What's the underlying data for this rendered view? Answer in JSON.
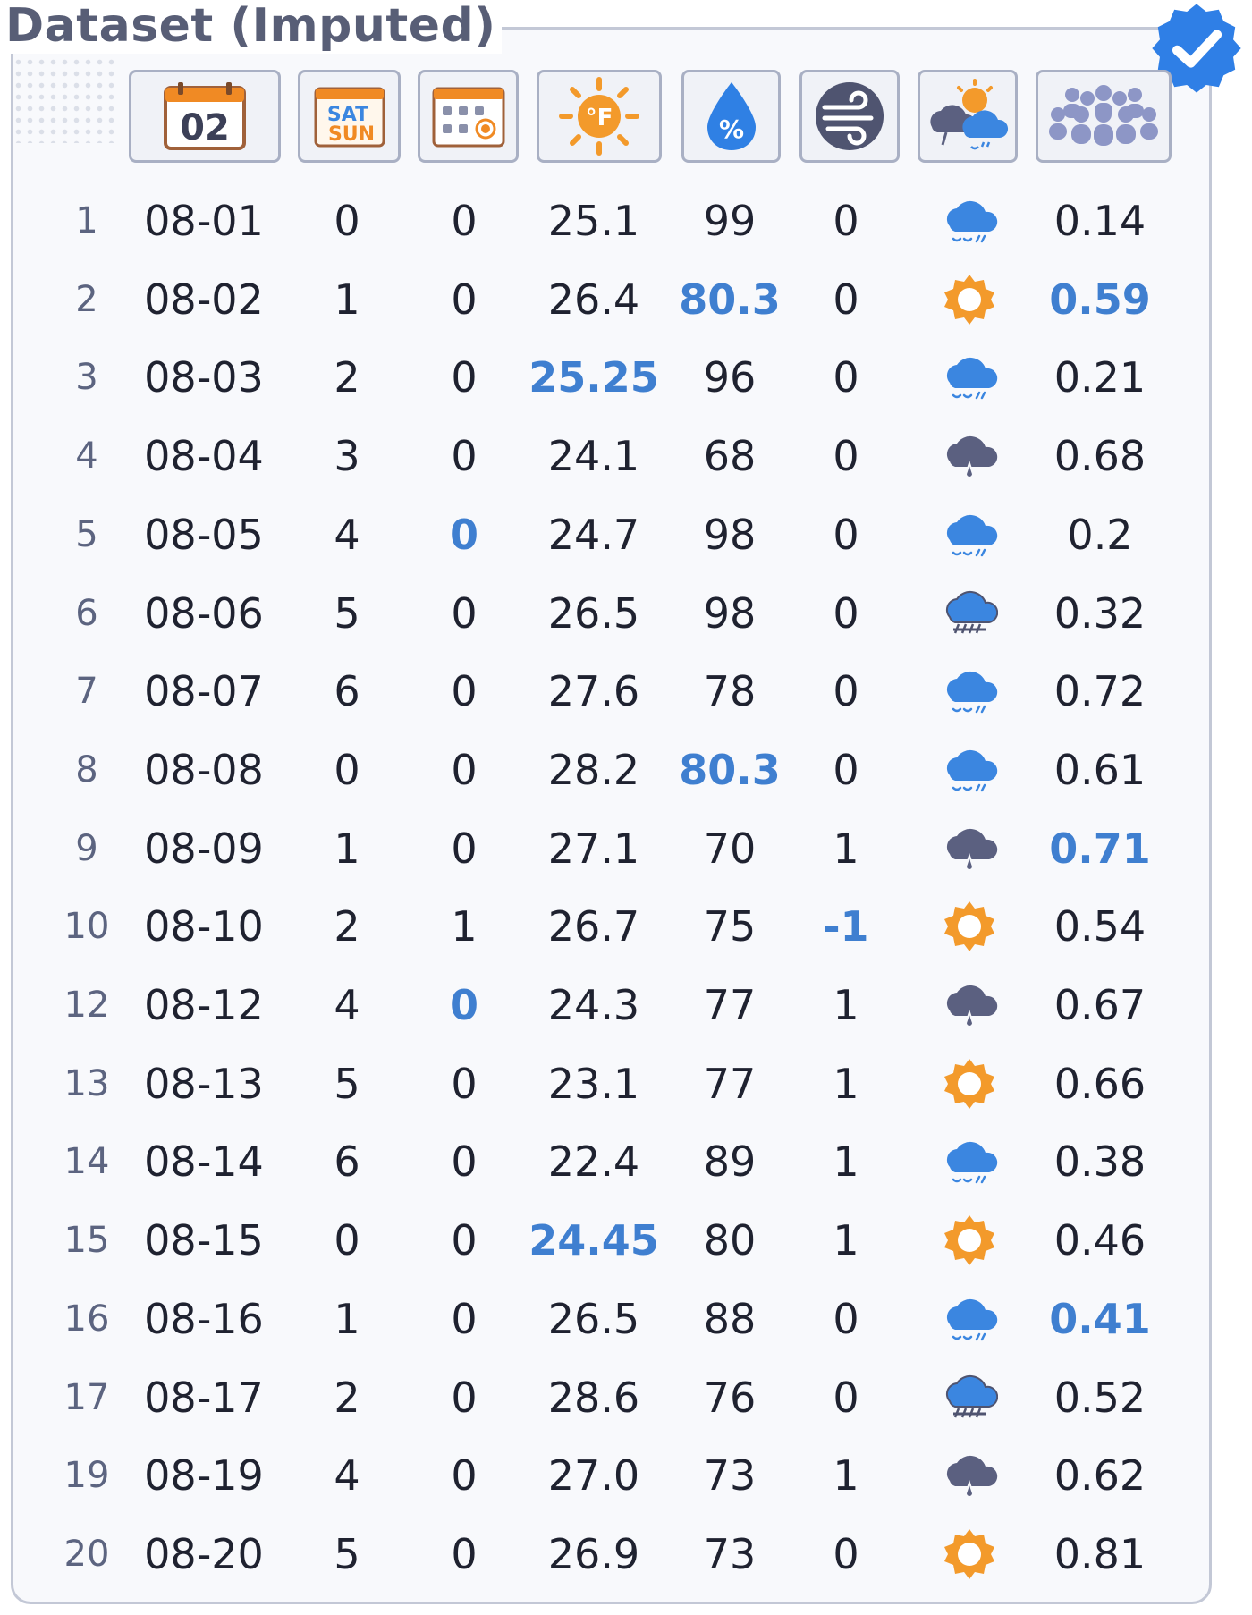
{
  "title": "Dataset (Imputed)",
  "colors": {
    "highlight": "#3f7fd0",
    "sun": "#f39a2b",
    "rain_cloud": "#3b86e0",
    "storm_cloud": "#5b6080",
    "frame": "#c3c8d6"
  },
  "headers": [
    {
      "name": "date",
      "icon": "calendar-date-icon",
      "text": "02"
    },
    {
      "name": "weekday",
      "icon": "sat-sun-weekend-icon",
      "text_top": "SAT",
      "text_bottom": "SUN"
    },
    {
      "name": "holiday",
      "icon": "calendar-holiday-icon"
    },
    {
      "name": "temperature",
      "icon": "sun-fahrenheit-icon",
      "text": "°F"
    },
    {
      "name": "humidity",
      "icon": "humidity-percent-drop-icon",
      "text": "%"
    },
    {
      "name": "wind",
      "icon": "wind-icon"
    },
    {
      "name": "weather",
      "icon": "weather-mixed-icon"
    },
    {
      "name": "attendance",
      "icon": "crowd-people-icon"
    }
  ],
  "rows": [
    {
      "idx": "1",
      "date": "08-01",
      "weekday": "0",
      "holiday": "0",
      "temp": "25.1",
      "humidity": "99",
      "wind": "0",
      "weather": "rain",
      "value": "0.14",
      "hl": []
    },
    {
      "idx": "2",
      "date": "08-02",
      "weekday": "1",
      "holiday": "0",
      "temp": "26.4",
      "humidity": "80.3",
      "wind": "0",
      "weather": "sun",
      "value": "0.59",
      "hl": [
        "humidity",
        "value"
      ]
    },
    {
      "idx": "3",
      "date": "08-03",
      "weekday": "2",
      "holiday": "0",
      "temp": "25.25",
      "humidity": "96",
      "wind": "0",
      "weather": "rain",
      "value": "0.21",
      "hl": [
        "temp"
      ]
    },
    {
      "idx": "4",
      "date": "08-04",
      "weekday": "3",
      "holiday": "0",
      "temp": "24.1",
      "humidity": "68",
      "wind": "0",
      "weather": "storm",
      "value": "0.68",
      "hl": []
    },
    {
      "idx": "5",
      "date": "08-05",
      "weekday": "4",
      "holiday": "0",
      "temp": "24.7",
      "humidity": "98",
      "wind": "0",
      "weather": "rain",
      "value": "0.2",
      "hl": [
        "holiday"
      ]
    },
    {
      "idx": "6",
      "date": "08-06",
      "weekday": "5",
      "holiday": "0",
      "temp": "26.5",
      "humidity": "98",
      "wind": "0",
      "weather": "heavy",
      "value": "0.32",
      "hl": []
    },
    {
      "idx": "7",
      "date": "08-07",
      "weekday": "6",
      "holiday": "0",
      "temp": "27.6",
      "humidity": "78",
      "wind": "0",
      "weather": "rain",
      "value": "0.72",
      "hl": []
    },
    {
      "idx": "8",
      "date": "08-08",
      "weekday": "0",
      "holiday": "0",
      "temp": "28.2",
      "humidity": "80.3",
      "wind": "0",
      "weather": "rain",
      "value": "0.61",
      "hl": [
        "humidity"
      ]
    },
    {
      "idx": "9",
      "date": "08-09",
      "weekday": "1",
      "holiday": "0",
      "temp": "27.1",
      "humidity": "70",
      "wind": "1",
      "weather": "storm",
      "value": "0.71",
      "hl": [
        "value"
      ]
    },
    {
      "idx": "10",
      "date": "08-10",
      "weekday": "2",
      "holiday": "1",
      "temp": "26.7",
      "humidity": "75",
      "wind": "-1",
      "weather": "sun",
      "value": "0.54",
      "hl": [
        "wind"
      ]
    },
    {
      "idx": "12",
      "date": "08-12",
      "weekday": "4",
      "holiday": "0",
      "temp": "24.3",
      "humidity": "77",
      "wind": "1",
      "weather": "storm",
      "value": "0.67",
      "hl": [
        "holiday"
      ]
    },
    {
      "idx": "13",
      "date": "08-13",
      "weekday": "5",
      "holiday": "0",
      "temp": "23.1",
      "humidity": "77",
      "wind": "1",
      "weather": "sun",
      "value": "0.66",
      "hl": []
    },
    {
      "idx": "14",
      "date": "08-14",
      "weekday": "6",
      "holiday": "0",
      "temp": "22.4",
      "humidity": "89",
      "wind": "1",
      "weather": "rain",
      "value": "0.38",
      "hl": []
    },
    {
      "idx": "15",
      "date": "08-15",
      "weekday": "0",
      "holiday": "0",
      "temp": "24.45",
      "humidity": "80",
      "wind": "1",
      "weather": "sun",
      "value": "0.46",
      "hl": [
        "temp"
      ]
    },
    {
      "idx": "16",
      "date": "08-16",
      "weekday": "1",
      "holiday": "0",
      "temp": "26.5",
      "humidity": "88",
      "wind": "0",
      "weather": "rain",
      "value": "0.41",
      "hl": [
        "value"
      ]
    },
    {
      "idx": "17",
      "date": "08-17",
      "weekday": "2",
      "holiday": "0",
      "temp": "28.6",
      "humidity": "76",
      "wind": "0",
      "weather": "heavy",
      "value": "0.52",
      "hl": []
    },
    {
      "idx": "19",
      "date": "08-19",
      "weekday": "4",
      "holiday": "0",
      "temp": "27.0",
      "humidity": "73",
      "wind": "1",
      "weather": "storm",
      "value": "0.62",
      "hl": []
    },
    {
      "idx": "20",
      "date": "08-20",
      "weekday": "5",
      "holiday": "0",
      "temp": "26.9",
      "humidity": "73",
      "wind": "0",
      "weather": "sun",
      "value": "0.81",
      "hl": []
    }
  ]
}
